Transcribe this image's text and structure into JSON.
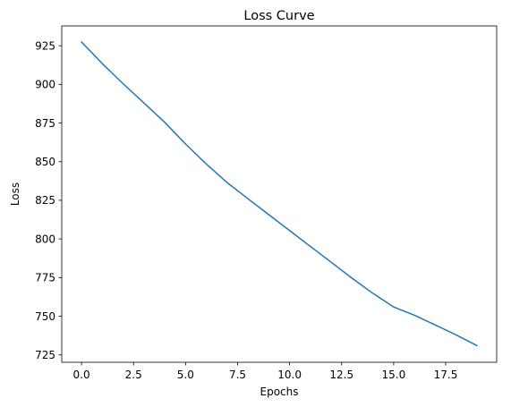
{
  "chart_data": {
    "type": "line",
    "title": "Loss Curve",
    "xlabel": "Epochs",
    "ylabel": "Loss",
    "xlim": [
      -0.95,
      19.95
    ],
    "ylim": [
      720.2,
      937.8
    ],
    "grid": false,
    "x_ticks": [
      0.0,
      2.5,
      5.0,
      7.5,
      10.0,
      12.5,
      15.0,
      17.5
    ],
    "x_tick_labels": [
      "0.0",
      "2.5",
      "5.0",
      "7.5",
      "10.0",
      "12.5",
      "15.0",
      "17.5"
    ],
    "y_ticks": [
      725,
      750,
      775,
      800,
      825,
      850,
      875,
      900,
      925
    ],
    "y_tick_labels": [
      "725",
      "750",
      "775",
      "800",
      "825",
      "850",
      "875",
      "900",
      "925"
    ],
    "series": [
      {
        "color": "#1f77b4",
        "x": [
          0,
          1,
          2,
          3,
          4,
          5,
          6,
          7,
          8,
          9,
          10,
          11,
          12,
          13,
          14,
          15,
          16,
          17,
          18,
          19
        ],
        "values": [
          927.4,
          913.4,
          900.4,
          888.0,
          875.4,
          861.4,
          848.4,
          836.4,
          826.0,
          815.7,
          805.4,
          795.1,
          784.9,
          774.6,
          764.8,
          756.0,
          750.6,
          744.3,
          737.9,
          731.0
        ]
      }
    ]
  }
}
